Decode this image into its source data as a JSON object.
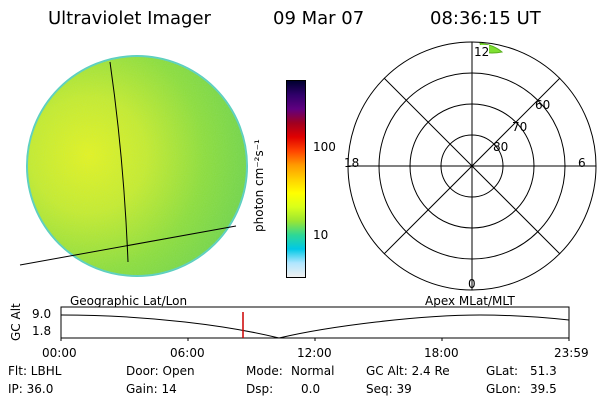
{
  "header": {
    "instrument": "Ultraviolet Imager",
    "date": "09 Mar 07",
    "time": "08:36:15 UT"
  },
  "colorbar": {
    "label": "photon cm⁻²s⁻¹",
    "ticks": [
      "100",
      "10"
    ],
    "colors": [
      "#f0f0f0",
      "#b0e6ff",
      "#00c8e6",
      "#2ed896",
      "#9be632",
      "#d9ff1a",
      "#ffff00",
      "#ffd000",
      "#ff9a00",
      "#ff4400",
      "#e00000",
      "#a00020",
      "#600080",
      "#30006a",
      "#000030"
    ]
  },
  "polar_plot": {
    "ring_labels": [
      "60",
      "70",
      "80"
    ],
    "mlt_labels": {
      "top": "12",
      "left": "18",
      "right": "6",
      "bottom": "0"
    },
    "patch_color": "#7fe032"
  },
  "orbit_plot": {
    "left_title": "Geographic Lat/Lon",
    "right_title": "Apex MLat/MLT",
    "y_axis_label": "GC Alt",
    "y_ticks": [
      "9.0",
      "1.8"
    ],
    "x_ticks": [
      "00:00",
      "06:00",
      "12:00",
      "18:00",
      "23:59"
    ],
    "marker_color": "#cc0000"
  },
  "info": {
    "filter": "Flt: LBHL",
    "ip": "IP: 36.0",
    "door": "Door: Open",
    "gain": "Gain: 14",
    "mode_label": "Mode:",
    "mode_value": "Normal",
    "dsp_label": "Dsp:",
    "dsp_value": "0.0",
    "gc_alt": "GC Alt: 2.4 Re",
    "seq": "Seq: 39",
    "glat_label": "GLat:",
    "glat_value": "51.3",
    "glon_label": "GLon:",
    "glon_value": "39.5"
  }
}
